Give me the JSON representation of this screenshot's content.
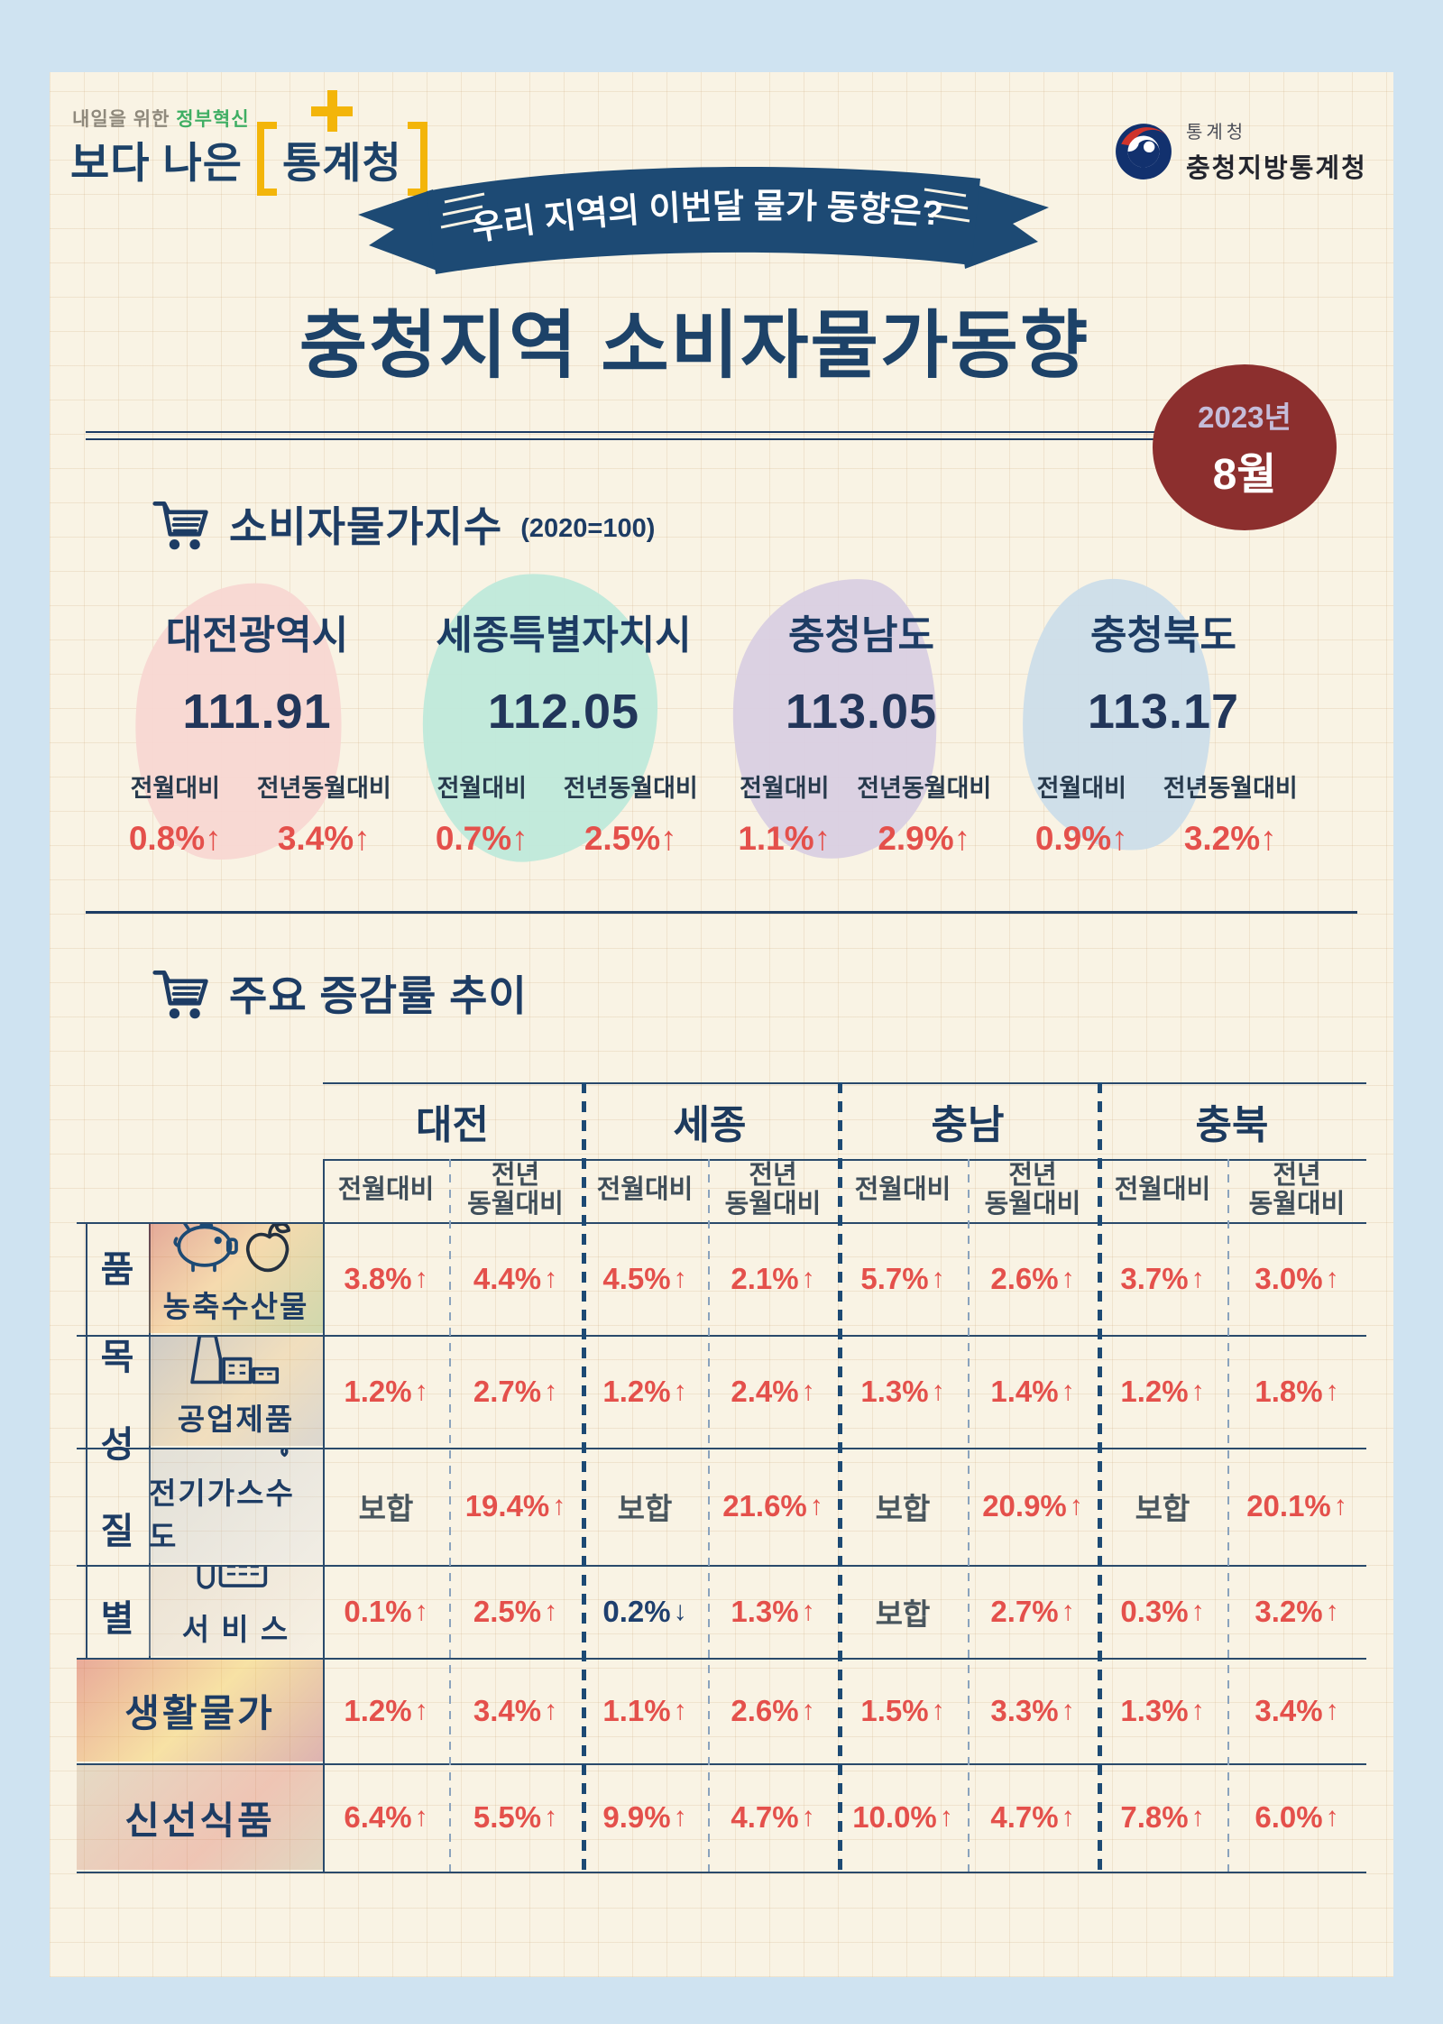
{
  "header": {
    "slogan_prefix": "내일을 위한 ",
    "slogan_highlight": "정부혁신",
    "logo_left": "보다 나은",
    "logo_right": "통계청",
    "agency_small": "통계청",
    "agency_name": "충청지방통계청"
  },
  "ribbon": {
    "text": "우리 지역의 이번달 물가 동향은?"
  },
  "title": "충청지역 소비자물가동향",
  "badge": {
    "year": "2023년",
    "month": "8월"
  },
  "section1": {
    "title": "소비자물가지수",
    "subtitle": "(2020=100)"
  },
  "regions": [
    {
      "name": "대전광역시",
      "index": "111.91",
      "mom_label": "전월대비",
      "yoy_label": "전년동월대비",
      "mom": "0.8%",
      "yoy": "3.4%",
      "map_color": "#f8d7d2"
    },
    {
      "name": "세종특별자치시",
      "index": "112.05",
      "mom_label": "전월대비",
      "yoy_label": "전년동월대비",
      "mom": "0.7%",
      "yoy": "2.5%",
      "map_color": "#bfe9da"
    },
    {
      "name": "충청남도",
      "index": "113.05",
      "mom_label": "전월대비",
      "yoy_label": "전년동월대비",
      "mom": "1.1%",
      "yoy": "2.9%",
      "map_color": "#d9cfe2"
    },
    {
      "name": "충청북도",
      "index": "113.17",
      "mom_label": "전월대비",
      "yoy_label": "전년동월대비",
      "mom": "0.9%",
      "yoy": "3.2%",
      "map_color": "#ccdde9"
    }
  ],
  "section2": {
    "title": "주요 증감률 추이"
  },
  "table": {
    "group_label": "품목성질별",
    "regions": [
      "대전",
      "세종",
      "충남",
      "충북"
    ],
    "sub_mom": "전월대비",
    "sub_yoy_line1": "전년",
    "sub_yoy_line2": "동월대비",
    "flat_text": "보합",
    "rows": [
      {
        "label": "농축수산물",
        "icon": "pig-apple-icon",
        "grouped": true,
        "cells": [
          {
            "v": "3.8%",
            "d": "up"
          },
          {
            "v": "4.4%",
            "d": "up"
          },
          {
            "v": "4.5%",
            "d": "up"
          },
          {
            "v": "2.1%",
            "d": "up"
          },
          {
            "v": "5.7%",
            "d": "up"
          },
          {
            "v": "2.6%",
            "d": "up"
          },
          {
            "v": "3.7%",
            "d": "up"
          },
          {
            "v": "3.0%",
            "d": "up"
          }
        ]
      },
      {
        "label": "공업제품",
        "icon": "factory-icon",
        "grouped": true,
        "cells": [
          {
            "v": "1.2%",
            "d": "up"
          },
          {
            "v": "2.7%",
            "d": "up"
          },
          {
            "v": "1.2%",
            "d": "up"
          },
          {
            "v": "2.4%",
            "d": "up"
          },
          {
            "v": "1.3%",
            "d": "up"
          },
          {
            "v": "1.4%",
            "d": "up"
          },
          {
            "v": "1.2%",
            "d": "up"
          },
          {
            "v": "1.8%",
            "d": "up"
          }
        ]
      },
      {
        "label": "전기가스수도",
        "icon": "bulb-faucet-icon",
        "grouped": true,
        "cells": [
          {
            "v": "보합",
            "d": "flat"
          },
          {
            "v": "19.4%",
            "d": "up"
          },
          {
            "v": "보합",
            "d": "flat"
          },
          {
            "v": "21.6%",
            "d": "up"
          },
          {
            "v": "보합",
            "d": "flat"
          },
          {
            "v": "20.9%",
            "d": "up"
          },
          {
            "v": "보합",
            "d": "flat"
          },
          {
            "v": "20.1%",
            "d": "up"
          }
        ]
      },
      {
        "label": "서 비 스",
        "icon": "phone-fax-icon",
        "grouped": true,
        "cells": [
          {
            "v": "0.1%",
            "d": "up"
          },
          {
            "v": "2.5%",
            "d": "up"
          },
          {
            "v": "0.2%",
            "d": "down"
          },
          {
            "v": "1.3%",
            "d": "up"
          },
          {
            "v": "보합",
            "d": "flat"
          },
          {
            "v": "2.7%",
            "d": "up"
          },
          {
            "v": "0.3%",
            "d": "up"
          },
          {
            "v": "3.2%",
            "d": "up"
          }
        ]
      },
      {
        "label": "생활물가",
        "icon": "",
        "grouped": false,
        "cells": [
          {
            "v": "1.2%",
            "d": "up"
          },
          {
            "v": "3.4%",
            "d": "up"
          },
          {
            "v": "1.1%",
            "d": "up"
          },
          {
            "v": "2.6%",
            "d": "up"
          },
          {
            "v": "1.5%",
            "d": "up"
          },
          {
            "v": "3.3%",
            "d": "up"
          },
          {
            "v": "1.3%",
            "d": "up"
          },
          {
            "v": "3.4%",
            "d": "up"
          }
        ]
      },
      {
        "label": "신선식품",
        "icon": "",
        "grouped": false,
        "cells": [
          {
            "v": "6.4%",
            "d": "up"
          },
          {
            "v": "5.5%",
            "d": "up"
          },
          {
            "v": "9.9%",
            "d": "up"
          },
          {
            "v": "4.7%",
            "d": "up"
          },
          {
            "v": "10.0%",
            "d": "up"
          },
          {
            "v": "4.7%",
            "d": "up"
          },
          {
            "v": "7.8%",
            "d": "up"
          },
          {
            "v": "6.0%",
            "d": "up"
          }
        ]
      }
    ]
  },
  "colors": {
    "page_bg": "#cfe3f1",
    "card_bg": "#f9f3e4",
    "navy": "#1d4268",
    "ribbon_navy": "#1d4a74",
    "red": "#e4504b",
    "badge_red": "#8c2f2e",
    "flat_gray": "#49565e",
    "down_navy": "#1e3f6e",
    "bracket_yellow": "#f3b50a",
    "slogan_green": "#3fae63"
  }
}
